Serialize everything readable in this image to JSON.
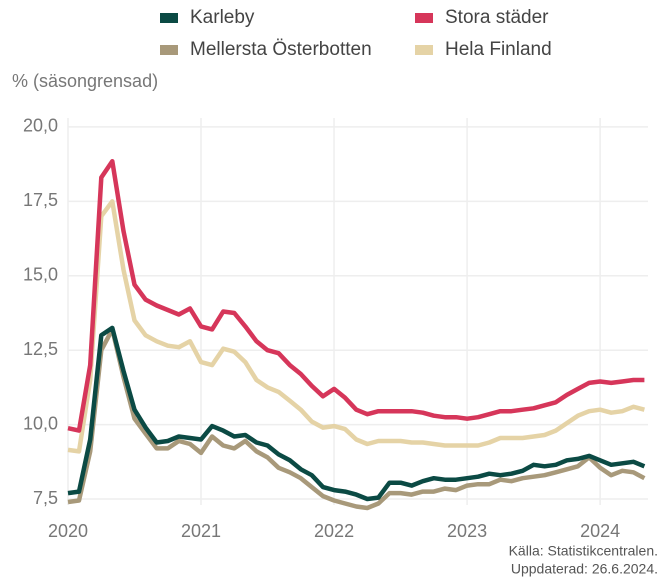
{
  "chart_data": {
    "type": "line",
    "y_label": "% (säsongrensad)",
    "source": [
      "Källa: Statistikcentralen.",
      "Uppdaterad: 26.6.2024."
    ],
    "x": [
      2020,
      2020.083,
      2020.167,
      2020.25,
      2020.333,
      2020.417,
      2020.5,
      2020.583,
      2020.667,
      2020.75,
      2020.833,
      2020.917,
      2021,
      2021.083,
      2021.167,
      2021.25,
      2021.333,
      2021.417,
      2021.5,
      2021.583,
      2021.667,
      2021.75,
      2021.833,
      2021.917,
      2022,
      2022.083,
      2022.167,
      2022.25,
      2022.333,
      2022.417,
      2022.5,
      2022.583,
      2022.667,
      2022.75,
      2022.833,
      2022.917,
      2023,
      2023.083,
      2023.167,
      2023.25,
      2023.333,
      2023.417,
      2023.5,
      2023.583,
      2023.667,
      2023.75,
      2023.833,
      2023.917,
      2024,
      2024.083,
      2024.167,
      2024.25,
      2024.333
    ],
    "series": [
      {
        "name": "Karleby",
        "color": "#0b4a44",
        "values": [
          7.7,
          7.75,
          9.5,
          13.0,
          13.25,
          11.8,
          10.5,
          9.9,
          9.4,
          9.45,
          9.6,
          9.55,
          9.5,
          9.95,
          9.8,
          9.6,
          9.65,
          9.4,
          9.3,
          9.0,
          8.8,
          8.5,
          8.3,
          7.9,
          7.8,
          7.75,
          7.65,
          7.5,
          7.55,
          8.05,
          8.05,
          7.95,
          8.1,
          8.2,
          8.15,
          8.15,
          8.2,
          8.25,
          8.35,
          8.3,
          8.35,
          8.45,
          8.65,
          8.6,
          8.65,
          8.8,
          8.85,
          8.95,
          8.8,
          8.65,
          8.7,
          8.75,
          8.6
        ]
      },
      {
        "name": "Stora städer",
        "color": "#d6365a",
        "values": [
          9.88,
          9.8,
          12.0,
          18.3,
          18.85,
          16.5,
          14.7,
          14.2,
          14.0,
          13.85,
          13.7,
          13.9,
          13.3,
          13.2,
          13.8,
          13.75,
          13.3,
          12.8,
          12.5,
          12.4,
          12.0,
          11.7,
          11.3,
          10.95,
          11.2,
          10.9,
          10.5,
          10.35,
          10.45,
          10.45,
          10.45,
          10.45,
          10.4,
          10.3,
          10.25,
          10.25,
          10.2,
          10.25,
          10.35,
          10.45,
          10.45,
          10.5,
          10.55,
          10.65,
          10.75,
          11.0,
          11.2,
          11.4,
          11.45,
          11.4,
          11.45,
          11.5,
          11.5
        ]
      },
      {
        "name": "Mellersta Österbotten",
        "color": "#a8997a",
        "values": [
          7.4,
          7.45,
          9.1,
          12.5,
          13.2,
          11.6,
          10.2,
          9.7,
          9.2,
          9.2,
          9.45,
          9.35,
          9.05,
          9.6,
          9.3,
          9.2,
          9.45,
          9.1,
          8.9,
          8.55,
          8.4,
          8.2,
          7.9,
          7.6,
          7.45,
          7.35,
          7.25,
          7.2,
          7.35,
          7.7,
          7.7,
          7.65,
          7.75,
          7.75,
          7.85,
          7.8,
          7.95,
          8.0,
          8.0,
          8.15,
          8.1,
          8.2,
          8.25,
          8.3,
          8.4,
          8.5,
          8.6,
          8.9,
          8.55,
          8.3,
          8.45,
          8.4,
          8.2
        ]
      },
      {
        "name": "Hela Finland",
        "color": "#e5d3a6",
        "values": [
          9.15,
          9.1,
          11.5,
          17.0,
          17.5,
          15.2,
          13.5,
          13.0,
          12.8,
          12.65,
          12.6,
          12.8,
          12.1,
          12.0,
          12.55,
          12.45,
          12.1,
          11.5,
          11.25,
          11.1,
          10.8,
          10.5,
          10.1,
          9.9,
          9.95,
          9.85,
          9.5,
          9.35,
          9.45,
          9.45,
          9.45,
          9.4,
          9.4,
          9.35,
          9.3,
          9.3,
          9.3,
          9.3,
          9.4,
          9.55,
          9.55,
          9.55,
          9.6,
          9.65,
          9.8,
          10.05,
          10.3,
          10.45,
          10.5,
          10.4,
          10.45,
          10.6,
          10.5
        ]
      }
    ],
    "xlim": [
      2020,
      2024.36
    ],
    "xticks": [
      2020,
      2021,
      2022,
      2023,
      2024
    ],
    "ylim": [
      7.3,
      20.3
    ],
    "yticks": [
      {
        "value": 7.5,
        "label": "7,5"
      },
      {
        "value": 10,
        "label": "10,0"
      },
      {
        "value": 12.5,
        "label": "12,5"
      },
      {
        "value": 15,
        "label": "15,0"
      },
      {
        "value": 17.5,
        "label": "17,5"
      },
      {
        "value": 20,
        "label": "20,0"
      }
    ],
    "grid": true,
    "legend": "top"
  }
}
